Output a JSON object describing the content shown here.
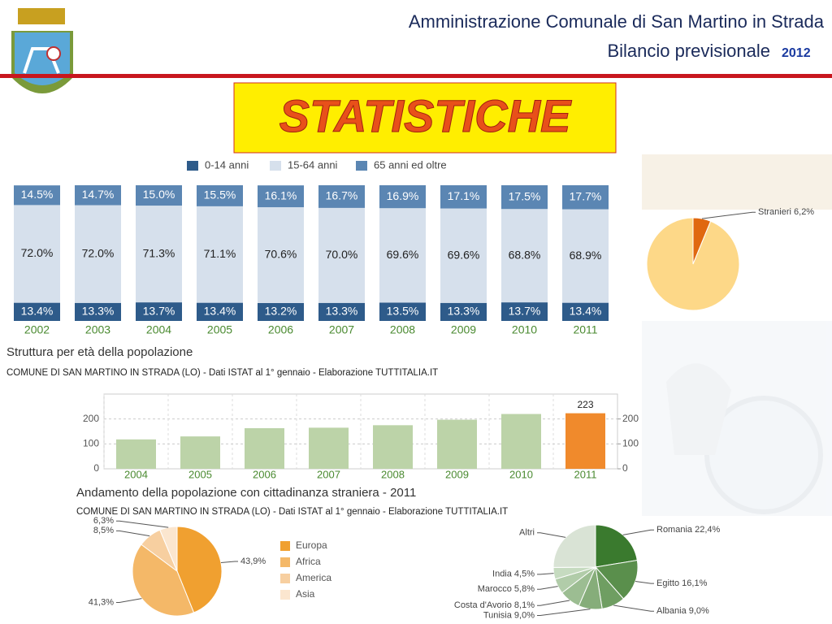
{
  "header": {
    "title": "Amministrazione Comunale di San Martino in Strada",
    "subtitle": "Bilancio previsionale",
    "year": "2012",
    "banner": "STATISTICHE"
  },
  "chart_data": [
    {
      "type": "stacked_bar",
      "title": "Struttura per età della popolazione",
      "subtitle": "COMUNE DI SAN MARTINO IN STRADA (LO) - Dati ISTAT al 1° gennaio - Elaborazione TUTTITALIA.IT",
      "categories": [
        "2002",
        "2003",
        "2004",
        "2005",
        "2006",
        "2007",
        "2008",
        "2009",
        "2010",
        "2011"
      ],
      "series": [
        {
          "name": "0-14 anni",
          "color": "#2e5b8a",
          "values": [
            13.4,
            13.3,
            13.7,
            13.4,
            13.2,
            13.3,
            13.5,
            13.3,
            13.7,
            13.4
          ],
          "value_labels": [
            "13.4%",
            "13.3%",
            "13.7%",
            "13.4%",
            "13.2%",
            "13.3%",
            "13.5%",
            "13.3%",
            "13.7%",
            "13.4%"
          ]
        },
        {
          "name": "15-64 anni",
          "color": "#d6e0ec",
          "values": [
            72.0,
            72.0,
            71.3,
            71.1,
            70.6,
            70.0,
            69.6,
            69.6,
            68.8,
            68.9
          ],
          "value_labels": [
            "72.0%",
            "72.0%",
            "71.3%",
            "71.1%",
            "70.6%",
            "70.0%",
            "69.6%",
            "69.6%",
            "68.8%",
            "68.9%"
          ]
        },
        {
          "name": "65 anni ed oltre",
          "color": "#5b86b3",
          "values": [
            14.5,
            14.7,
            15.0,
            15.5,
            16.1,
            16.7,
            16.9,
            17.1,
            17.5,
            17.7
          ],
          "value_labels": [
            "14.5%",
            "14.7%",
            "15.0%",
            "15.5%",
            "16.1%",
            "16.7%",
            "16.9%",
            "17.1%",
            "17.5%",
            "17.7%"
          ]
        }
      ],
      "ylim": [
        0,
        100
      ]
    },
    {
      "type": "bar",
      "title": "Andamento della popolazione con cittadinanza straniera - 2011",
      "subtitle": "COMUNE DI SAN MARTINO IN STRADA (LO) - Dati ISTAT al 1° gennaio - Elaborazione TUTTITALIA.IT",
      "categories": [
        "2004",
        "2005",
        "2006",
        "2007",
        "2008",
        "2009",
        "2010",
        "2011"
      ],
      "values": [
        118,
        130,
        163,
        165,
        175,
        197,
        220,
        223
      ],
      "value_labels": [
        null,
        null,
        null,
        null,
        null,
        null,
        null,
        "223"
      ],
      "colors": [
        "#bcd3a8",
        "#bcd3a8",
        "#bcd3a8",
        "#bcd3a8",
        "#bcd3a8",
        "#bcd3a8",
        "#bcd3a8",
        "#f08a2c"
      ],
      "ylim": [
        0,
        300
      ],
      "yticks": [
        0,
        100,
        200
      ],
      "y2lim": [
        0,
        300
      ],
      "y2ticks": [
        0,
        100,
        200
      ],
      "grid": true
    },
    {
      "type": "pie",
      "categories": [
        "Europa",
        "Africa",
        "America",
        "Asia"
      ],
      "values": [
        43.9,
        41.3,
        8.5,
        6.3
      ],
      "value_labels": [
        "43,9%",
        "41,3%",
        "8,5%",
        "6,3%"
      ],
      "colors": [
        "#f0a030",
        "#f4b868",
        "#f7cfa0",
        "#fbe6cf"
      ],
      "legend": "right"
    },
    {
      "type": "pie",
      "values": [
        22.4,
        16.1,
        9.0,
        9.0,
        8.1,
        5.8,
        4.5,
        25.1
      ],
      "value_labels": [
        "Romania 22,4%",
        "Egitto 16,1%",
        "Albania 9,0%",
        "Tunisia 9,0%",
        "Costa d'Avorio 8,1%",
        "Marocco 5,8%",
        "India 4,5%",
        "Altri"
      ],
      "colors": [
        "#3a7a2e",
        "#5a8f4c",
        "#6f9e62",
        "#86ad7a",
        "#9cbd92",
        "#b1cca9",
        "#c6dbc0",
        "#d9e3d5"
      ]
    },
    {
      "type": "pie",
      "values": [
        6.2,
        93.8
      ],
      "value_labels": [
        "Stranieri 6,2%",
        null
      ],
      "colors": [
        "#e06810",
        "#fdd888"
      ]
    }
  ]
}
